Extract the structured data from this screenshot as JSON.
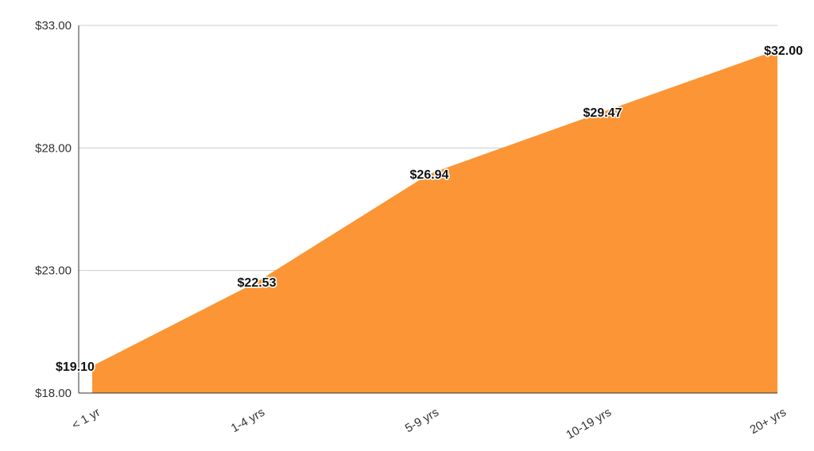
{
  "chart_data": {
    "type": "area",
    "categories": [
      "< 1 yr",
      "1-4 yrs",
      "5-9 yrs",
      "10-19 yrs",
      "20+ yrs"
    ],
    "values": [
      19.1,
      22.53,
      26.94,
      29.47,
      32.0
    ],
    "data_labels": [
      "$19.10",
      "$22.53",
      "$26.94",
      "$29.47",
      "$32.00"
    ],
    "y_ticks": [
      "$18.00",
      "$23.00",
      "$28.00",
      "$33.00"
    ],
    "y_tick_values": [
      18,
      23,
      28,
      33
    ],
    "ylim": [
      18,
      33
    ],
    "title": "",
    "xlabel": "",
    "ylabel": "",
    "grid": true,
    "legend": "none",
    "colors": {
      "fill": "#fb9535",
      "grid": "#cccccc",
      "axis": "#333333"
    }
  }
}
